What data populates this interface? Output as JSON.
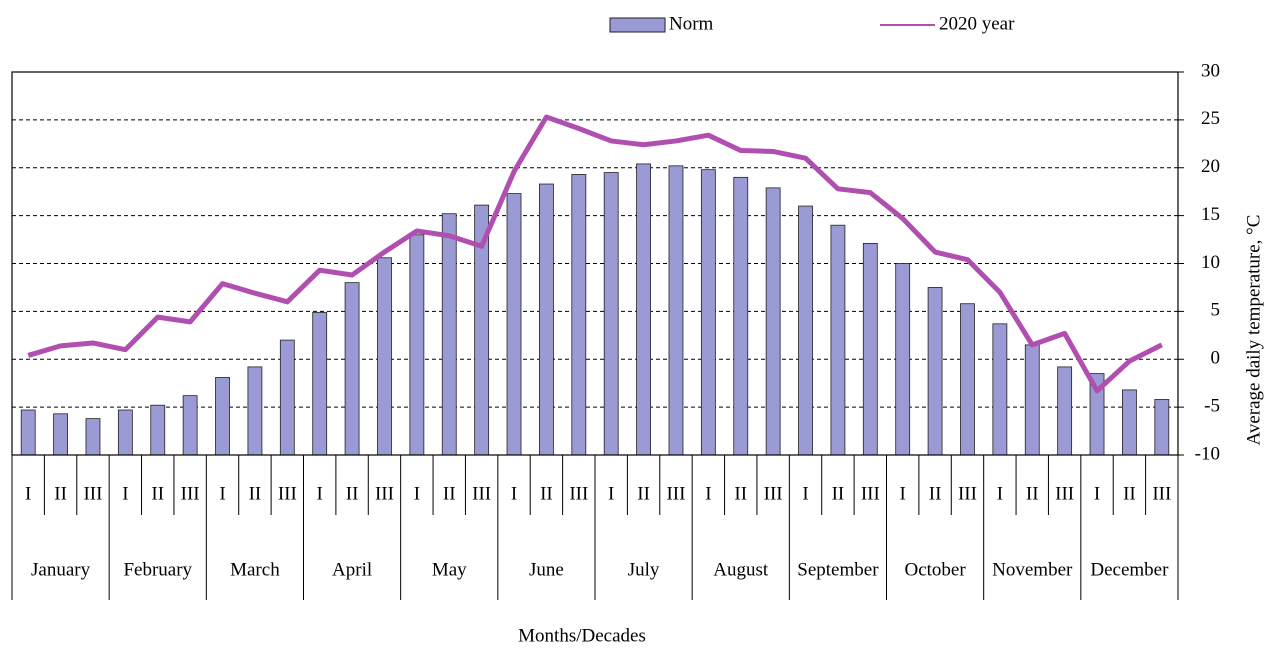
{
  "chart_data": {
    "type": "bar",
    "x_label": "Months/Decades",
    "y_label": "Average daily temperature, °C",
    "categories": [
      "I",
      "II",
      "III",
      "I",
      "II",
      "III",
      "I",
      "II",
      "III",
      "I",
      "II",
      "III",
      "I",
      "II",
      "III",
      "I",
      "II",
      "III",
      "I",
      "II",
      "III",
      "I",
      "II",
      "III",
      "I",
      "II",
      "III",
      "I",
      "II",
      "III",
      "I",
      "II",
      "III",
      "I",
      "II",
      "III"
    ],
    "groups": [
      "January",
      "February",
      "March",
      "April",
      "May",
      "June",
      "July",
      "August",
      "September",
      "October",
      "November",
      "December"
    ],
    "series": [
      {
        "name": "Norm",
        "type": "bar",
        "color": "#9a9ad4",
        "values": [
          -5.3,
          -5.7,
          -6.2,
          -5.3,
          -4.8,
          -3.8,
          -1.9,
          -0.8,
          2.0,
          4.9,
          8.0,
          10.6,
          13.0,
          15.2,
          16.1,
          17.3,
          18.3,
          19.3,
          19.5,
          20.4,
          20.2,
          19.8,
          19.0,
          17.9,
          16.0,
          14.0,
          12.1,
          10.0,
          7.5,
          5.8,
          3.7,
          1.5,
          -0.8,
          -1.5,
          -3.2,
          -4.2
        ]
      },
      {
        "name": "2020 year",
        "type": "line",
        "color": "#b04fb0",
        "values": [
          0.4,
          1.4,
          1.7,
          1.0,
          4.4,
          3.9,
          7.9,
          6.9,
          6.0,
          9.3,
          8.8,
          11.2,
          13.4,
          12.9,
          11.8,
          19.6,
          25.3,
          24.1,
          22.8,
          22.4,
          22.8,
          23.4,
          21.8,
          21.7,
          21.0,
          17.8,
          17.4,
          14.7,
          11.2,
          10.4,
          7.0,
          1.5,
          2.7,
          -3.3,
          -0.2,
          1.5
        ]
      }
    ],
    "ylim": [
      -10,
      30
    ],
    "yticks": [
      -10,
      -5,
      0,
      5,
      10,
      15,
      20,
      25,
      30
    ],
    "grid": true,
    "legend": "top"
  }
}
